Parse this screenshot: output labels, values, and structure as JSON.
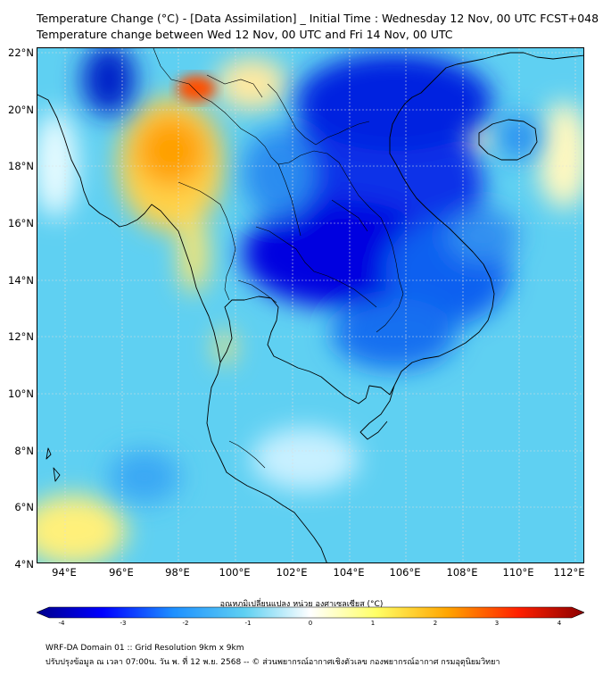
{
  "title_line1": "Temperature Change (°C) - [Data Assimilation] _ Initial Time : Wednesday 12 Nov, 00 UTC FCST+048",
  "title_line2": "Temperature change between Wed 12 Nov, 00 UTC and Fri 14 Nov, 00 UTC",
  "y_ticks": [
    "22°N",
    "20°N",
    "18°N",
    "16°N",
    "14°N",
    "12°N",
    "10°N",
    "8°N",
    "6°N",
    "4°N"
  ],
  "x_ticks": [
    "94°E",
    "96°E",
    "98°E",
    "100°E",
    "102°E",
    "104°E",
    "106°E",
    "108°E",
    "110°E",
    "112°E"
  ],
  "colorbar": {
    "label": "อุณหภูมิเปลี่ยนแปลง หน่วย องศาเซลเซียส (°C)",
    "ticks": [
      "-4",
      "-3",
      "-2",
      "-1",
      "0",
      "1",
      "2",
      "3",
      "4"
    ],
    "range": [
      -4,
      4
    ],
    "colors": [
      "#00008b",
      "#0000ff",
      "#1e90ff",
      "#5fd0f2",
      "#ffffff",
      "#ffff66",
      "#ffa500",
      "#ff2000",
      "#8b0000"
    ]
  },
  "footer_line1": "WRF-DA Domain 01 :: Grid Resolution 9km x 9km",
  "footer_line2": "ปรับปรุงข้อมูล ณ เวลา 07:00น. วัน พ. ที่ 12 พ.ย. 2568 -- © ส่วนพยากรณ์อากาศเชิงตัวเลข กองพยากรณ์อากาศ กรมอุตุนิยมวิทยา"
}
